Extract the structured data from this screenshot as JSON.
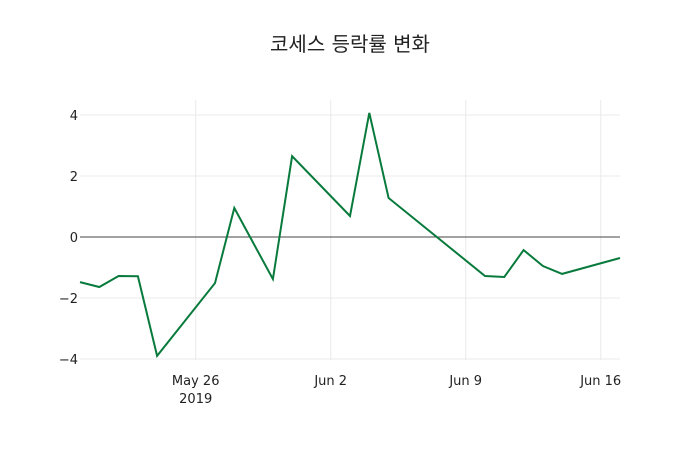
{
  "chart_data": {
    "type": "line",
    "title": "코세스 등락률 변화",
    "xlabel": "",
    "ylabel": "",
    "x": [
      "2019-05-20",
      "2019-05-21",
      "2019-05-22",
      "2019-05-23",
      "2019-05-24",
      "2019-05-27",
      "2019-05-28",
      "2019-05-30",
      "2019-05-31",
      "2019-06-03",
      "2019-06-04",
      "2019-06-05",
      "2019-06-10",
      "2019-06-11",
      "2019-06-12",
      "2019-06-13",
      "2019-06-14",
      "2019-06-17"
    ],
    "series": [
      {
        "name": "등락률",
        "color": "#087A3C",
        "values": [
          -1.48,
          -1.64,
          -1.28,
          -1.29,
          -3.9,
          -1.51,
          0.95,
          -1.38,
          2.65,
          0.69,
          4.07,
          1.28,
          -1.28,
          -1.31,
          -0.43,
          -0.95,
          -1.21,
          -0.69
        ]
      }
    ],
    "x_ticks": [
      {
        "date": "2019-05-26",
        "label": "May 26",
        "sublabel": "2019"
      },
      {
        "date": "2019-06-02",
        "label": "Jun 2",
        "sublabel": ""
      },
      {
        "date": "2019-06-09",
        "label": "Jun 9",
        "sublabel": ""
      },
      {
        "date": "2019-06-16",
        "label": "Jun 16",
        "sublabel": ""
      }
    ],
    "y_ticks": [
      {
        "value": 4,
        "label": "4"
      },
      {
        "value": 2,
        "label": "2"
      },
      {
        "value": 0,
        "label": "0"
      },
      {
        "value": -2,
        "label": "−2"
      },
      {
        "value": -4,
        "label": "−4"
      }
    ],
    "xlim": [
      "2019-05-20",
      "2019-06-17"
    ],
    "ylim": [
      -4.4,
      4.5
    ],
    "grid": true,
    "zero_line": true,
    "legend": "none"
  }
}
